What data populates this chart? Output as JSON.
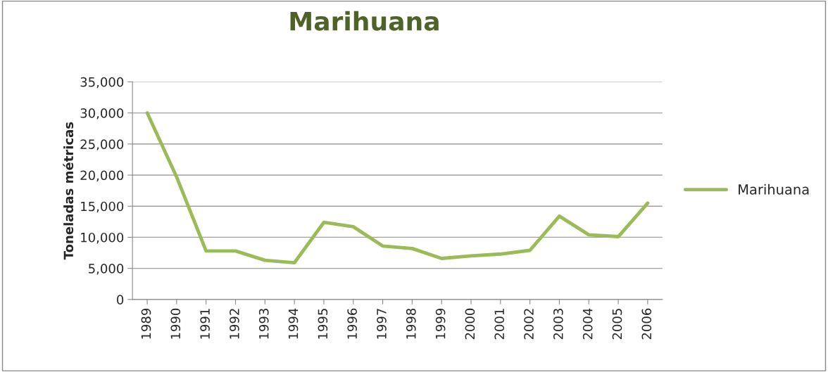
{
  "chart_data": {
    "type": "line",
    "title": "Marihuana",
    "ylabel": "Toneladas métricas",
    "categories": [
      "1989",
      "1990",
      "1991",
      "1992",
      "1993",
      "1994",
      "1995",
      "1996",
      "1997",
      "1998",
      "1999",
      "2000",
      "2001",
      "2002",
      "2003",
      "2004",
      "2005",
      "2006"
    ],
    "series": [
      {
        "name": "Marihuana",
        "color": "#9bbb59",
        "values": [
          30000,
          19700,
          7800,
          7800,
          6300,
          5900,
          12400,
          11700,
          8600,
          8200,
          6600,
          7000,
          7300,
          7900,
          13400,
          10400,
          10100,
          15500
        ]
      }
    ],
    "ylim": [
      0,
      35000
    ],
    "yticks": [
      {
        "value": 0,
        "label": "0"
      },
      {
        "value": 5000,
        "label": "5,000"
      },
      {
        "value": 10000,
        "label": "10,000"
      },
      {
        "value": 15000,
        "label": "15,000"
      },
      {
        "value": 20000,
        "label": "20,000"
      },
      {
        "value": 25000,
        "label": "25,000"
      },
      {
        "value": 30000,
        "label": "30,000"
      },
      {
        "value": 35000,
        "label": "35,000"
      }
    ],
    "grid": "y",
    "legend": "right",
    "marker": "none",
    "line_style": "solid"
  }
}
